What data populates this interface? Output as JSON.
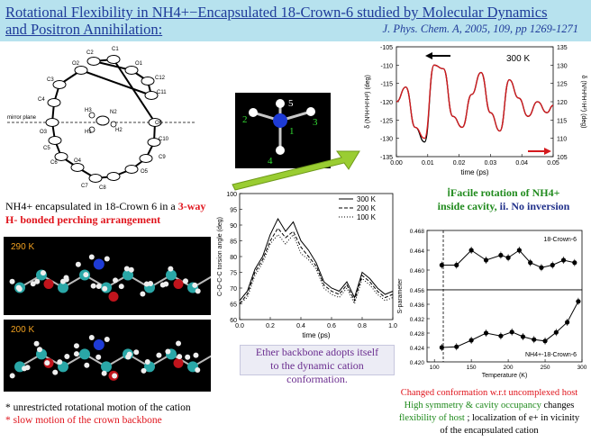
{
  "header": {
    "title_line1": "Rotational Flexibility in NH4+−Encapsulated 18-Crown-6 studied by Molecular Dynamics",
    "title_line2": "and Positron Annihilation:",
    "journal": "J. Phys. Chem. A, 2005, 109, pp 1269-1271"
  },
  "crystal": {
    "atom_labels": [
      "C1",
      "C2",
      "O1",
      "C12",
      "C11",
      "O2",
      "C3",
      "C4",
      "H3",
      "N2",
      "H2",
      "O6",
      "C10",
      "H1",
      "O3",
      "C5",
      "C6",
      "O4",
      "C9",
      "O5",
      "C7",
      "C8"
    ],
    "mirror_label": "mirror plane"
  },
  "caption_left": {
    "part1": "NH4+ encapsulated in  18-Crown 6 in a ",
    "part2": "3-way H- bonded perching arrangement"
  },
  "mol_panels": [
    {
      "label": "290 K"
    },
    {
      "label": "200 K"
    }
  ],
  "bullets": [
    {
      "text": "* unrestricted rotational motion of the cation",
      "color": "#000000"
    },
    {
      "text": "* slow motion of  the crown backbone",
      "color": "#e0141c"
    }
  ],
  "ammonium": {
    "labels": [
      "5",
      "2",
      "3",
      "1",
      "4"
    ]
  },
  "top_chart": {
    "temp_label": "300 K",
    "xlabel": "time (ps)",
    "ylabel_left": "δ (N¹H⁴H⁵H²) (deg)",
    "ylabel_right": "δ (N¹H³H⁵H²) (deg)"
  },
  "facile": {
    "line1_a": "ⅰFacile rotation of NH4+",
    "line2_a": "inside cavity, ",
    "line2_b": "ii. No inversion"
  },
  "torsion_chart": {
    "xlabel": "time (ps)",
    "ylabel": "C-O-C-C torsion angle (deg)"
  },
  "ether_box": {
    "line1": "Ether backbone adopts itself",
    "line2": "to the dynamic cation conformation."
  },
  "s_chart": {
    "ylabel": "S-parameter",
    "xlabel": "Temperature (K)",
    "top_label": "18-Crown-6",
    "bottom_label": "NH4+-18-Crown-6"
  },
  "conclusion": {
    "line1": "Changed conformation w.r.t  uncomplexed host",
    "line2_a": "High symmetry & cavity  occupancy ",
    "line2_b": "changes",
    "line3_a": "flexibility of host",
    "line3_b": " ; localization of e+ in vicinity",
    "line4": "of the encapsulated cation"
  },
  "colors": {
    "header_bg": "#b7e2ee",
    "title": "#1f3b9a",
    "red": "#e0141c",
    "green": "#1f8a1c",
    "purple": "#6a2d8f",
    "nitrogen": "#1e3bd6",
    "carbon": "#2aa7a7"
  },
  "chart_data": [
    {
      "type": "line",
      "title": "300 K",
      "xlabel": "time (ps)",
      "ylabel": "δ (N¹H⁴H⁵H²) (deg)",
      "xlim": [
        0.0,
        0.05
      ],
      "ylim": [
        -135,
        -105
      ],
      "y2lim": [
        105,
        135
      ],
      "x": [
        0.0,
        0.003,
        0.006,
        0.009,
        0.012,
        0.015,
        0.018,
        0.021,
        0.024,
        0.027,
        0.03,
        0.033,
        0.036,
        0.039,
        0.042,
        0.045,
        0.048,
        0.05
      ],
      "series": [
        {
          "axis": "left",
          "color": "#000000",
          "values": [
            -120,
            -116,
            -127,
            -131,
            -110,
            -111,
            -124,
            -127,
            -118,
            -112,
            -123,
            -128,
            -114,
            -119,
            -124,
            -120,
            -123,
            -121
          ]
        },
        {
          "axis": "right",
          "color": "#d4191d",
          "values": [
            120,
            124,
            113,
            110,
            130,
            129,
            116,
            113,
            122,
            128,
            117,
            112,
            126,
            121,
            116,
            120,
            117,
            119
          ]
        }
      ]
    },
    {
      "type": "line",
      "xlabel": "time (ps)",
      "ylabel": "C-O-C-C torsion angle (deg)",
      "xlim": [
        0.0,
        1.0
      ],
      "ylim": [
        60,
        100
      ],
      "x": [
        0.0,
        0.05,
        0.1,
        0.15,
        0.2,
        0.25,
        0.3,
        0.35,
        0.4,
        0.45,
        0.5,
        0.55,
        0.6,
        0.65,
        0.7,
        0.75,
        0.8,
        0.85,
        0.9,
        0.95,
        1.0
      ],
      "series": [
        {
          "name": "300 K",
          "dash": "",
          "values": [
            66,
            69,
            76,
            80,
            87,
            92,
            88,
            91,
            85,
            82,
            78,
            72,
            70,
            69,
            72,
            67,
            75,
            73,
            70,
            68,
            69
          ]
        },
        {
          "name": "200 K",
          "dash": "4,2",
          "values": [
            65,
            68,
            75,
            79,
            85,
            89,
            86,
            88,
            83,
            80,
            77,
            71,
            69,
            68,
            71,
            66,
            74,
            72,
            69,
            67,
            68
          ]
        },
        {
          "name": "100 K",
          "dash": "1,2",
          "values": [
            65,
            67,
            74,
            78,
            84,
            87,
            84,
            87,
            81,
            79,
            76,
            70,
            68,
            67,
            70,
            65,
            73,
            71,
            68,
            66,
            67
          ]
        }
      ]
    },
    {
      "type": "scatter",
      "title": "18-Crown-6",
      "ylabel": "S-parameter",
      "xlim": [
        90,
        300
      ],
      "ylim": [
        0.456,
        0.468
      ],
      "x": [
        110,
        130,
        150,
        170,
        190,
        200,
        215,
        230,
        245,
        260,
        275,
        290
      ],
      "values": [
        0.461,
        0.461,
        0.464,
        0.462,
        0.463,
        0.4625,
        0.464,
        0.4615,
        0.4605,
        0.461,
        0.462,
        0.4615
      ]
    },
    {
      "type": "scatter",
      "title": "NH4+-18-Crown-6",
      "xlabel": "Temperature (K)",
      "ylim": [
        0.42,
        0.44
      ],
      "xlim": [
        90,
        300
      ],
      "x": [
        110,
        130,
        150,
        170,
        190,
        205,
        220,
        235,
        250,
        265,
        280,
        295
      ],
      "values": [
        0.424,
        0.4242,
        0.426,
        0.428,
        0.4272,
        0.4283,
        0.427,
        0.4262,
        0.4258,
        0.4282,
        0.431,
        0.4368
      ]
    }
  ]
}
